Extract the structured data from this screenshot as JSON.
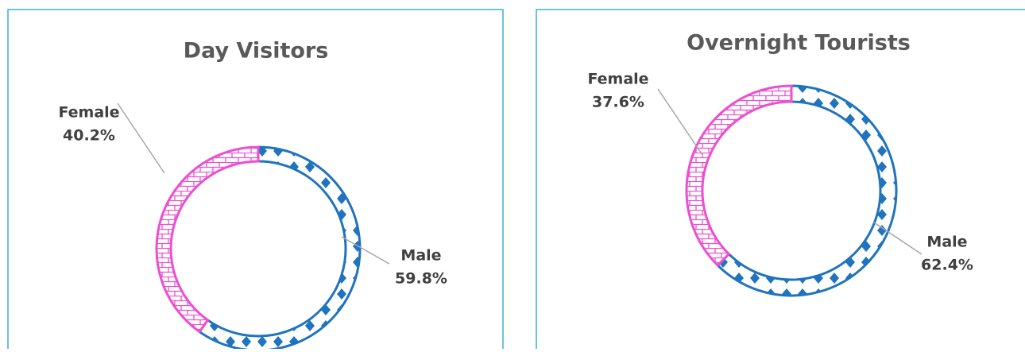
{
  "chart_data": [
    {
      "type": "donut",
      "title": "Day Visitors",
      "categories": [
        "Male",
        "Female"
      ],
      "values": [
        59.8,
        40.2
      ],
      "value_labels": [
        "59.8%",
        "40.2%"
      ],
      "colors": [
        "#1f74bd",
        "#ec4fcf"
      ]
    },
    {
      "type": "donut",
      "title": "Overnight Tourists",
      "categories": [
        "Male",
        "Female"
      ],
      "values": [
        62.4,
        37.6
      ],
      "value_labels": [
        "62.4%",
        "37.6%"
      ],
      "colors": [
        "#1f74bd",
        "#ec4fcf"
      ]
    }
  ]
}
